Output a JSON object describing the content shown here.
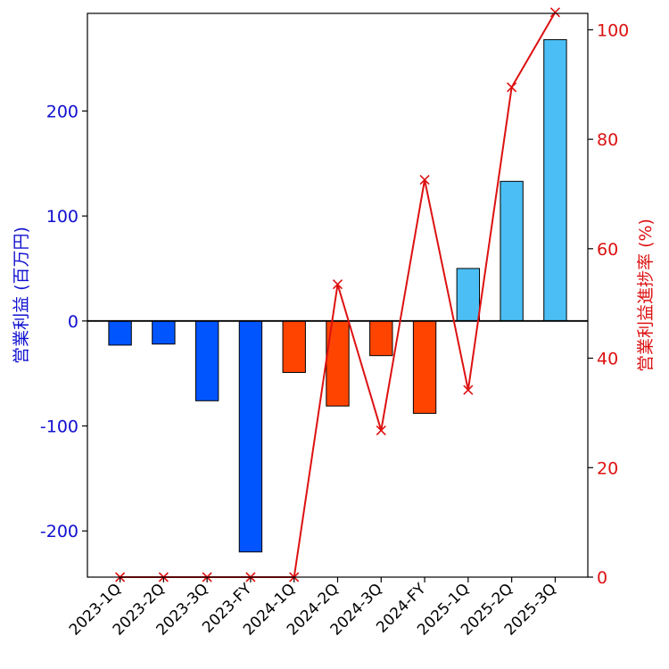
{
  "chart_data": {
    "type": "bar",
    "categories": [
      "2023-1Q",
      "2023-2Q",
      "2023-3Q",
      "2023-FY",
      "2024-1Q",
      "2024-2Q",
      "2024-3Q",
      "2024-FY",
      "2025-1Q",
      "2025-2Q",
      "2025-3Q"
    ],
    "series": [
      {
        "name": "営業利益 (百万円)",
        "type": "bar",
        "axis": "left",
        "values": [
          -23,
          -22,
          -76,
          -220,
          -49,
          -81,
          -33,
          -88,
          50,
          133,
          268
        ],
        "colors": [
          "#0055ff",
          "#0055ff",
          "#0055ff",
          "#0055ff",
          "#ff4400",
          "#ff4400",
          "#ff4400",
          "#ff4400",
          "#4bbff5",
          "#4bbff5",
          "#4bbff5"
        ]
      },
      {
        "name": "営業利益進捗率 (%)",
        "type": "line",
        "axis": "right",
        "marker": "x",
        "color": "#dd1111",
        "values": [
          0,
          0,
          0,
          0,
          0,
          53.5,
          26.8,
          72.6,
          34.2,
          89.5,
          103.2
        ]
      }
    ],
    "title": "",
    "xlabel": "",
    "ylabel_left": "営業利益 (百万円)",
    "ylabel_right": "営業利益進捗率 (%)",
    "ylim_left": [
      -244,
      293
    ],
    "ylim_right": [
      0,
      103
    ],
    "yticks_left": [
      -200,
      -100,
      0,
      100,
      200
    ],
    "yticks_right": [
      0,
      20,
      40,
      60,
      80,
      100
    ],
    "left_axis_color": "#1010d0",
    "right_axis_color": "#dd1111",
    "zero_line": true,
    "grid": false,
    "legend": "none"
  }
}
